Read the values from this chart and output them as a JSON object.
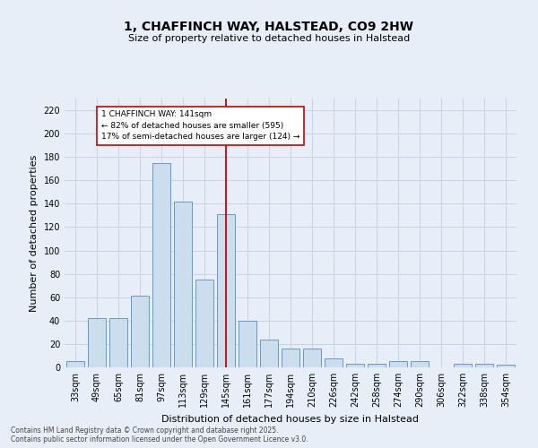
{
  "title": "1, CHAFFINCH WAY, HALSTEAD, CO9 2HW",
  "subtitle": "Size of property relative to detached houses in Halstead",
  "xlabel": "Distribution of detached houses by size in Halstead",
  "ylabel": "Number of detached properties",
  "footer": "Contains HM Land Registry data © Crown copyright and database right 2025.\nContains public sector information licensed under the Open Government Licence v3.0.",
  "bar_color": "#ccdded",
  "bar_edge_color": "#6699cc",
  "annotation_box_color": "#ffffff",
  "annotation_box_edge_color": "#cc0000",
  "vline_color": "#cc0000",
  "annotation_title": "1 CHAFFINCH WAY: 141sqm",
  "annotation_line2": "← 82% of detached houses are smaller (595)",
  "annotation_line3": "17% of semi-detached houses are larger (124) →",
  "categories": [
    "33sqm",
    "49sqm",
    "65sqm",
    "81sqm",
    "97sqm",
    "113sqm",
    "129sqm",
    "145sqm",
    "161sqm",
    "177sqm",
    "194sqm",
    "210sqm",
    "226sqm",
    "242sqm",
    "258sqm",
    "274sqm",
    "290sqm",
    "306sqm",
    "322sqm",
    "338sqm",
    "354sqm"
  ],
  "values": [
    5,
    42,
    42,
    61,
    175,
    142,
    75,
    131,
    40,
    24,
    16,
    16,
    8,
    3,
    3,
    5,
    5,
    0,
    3,
    3,
    2
  ],
  "vline_index": 7,
  "ylim": [
    0,
    230
  ],
  "yticks": [
    0,
    20,
    40,
    60,
    80,
    100,
    120,
    140,
    160,
    180,
    200,
    220
  ],
  "grid_color": "#c8d4e4",
  "background_color": "#e8eef8",
  "title_fontsize": 10,
  "subtitle_fontsize": 8,
  "ylabel_fontsize": 8,
  "xlabel_fontsize": 8,
  "tick_fontsize": 7,
  "footer_fontsize": 5.5,
  "annotation_fontsize": 6.5
}
